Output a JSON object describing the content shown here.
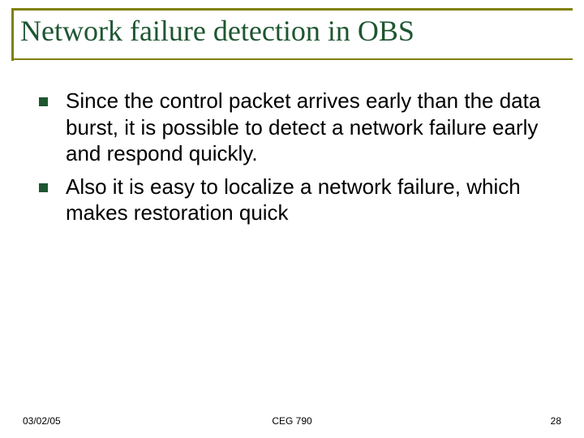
{
  "colors": {
    "title_text": "#1e5631",
    "title_border": "#808000",
    "title_underline": "#808000",
    "bullet_marker": "#1e5631",
    "body_text": "#000000",
    "footer_text": "#000000",
    "background": "#ffffff"
  },
  "typography": {
    "title_family": "Times New Roman",
    "title_size_pt": 36,
    "body_family": "Arial",
    "body_size_pt": 26,
    "footer_size_pt": 12
  },
  "title": "Network failure detection in OBS",
  "bullets": [
    "Since the control packet arrives early than the data burst, it is possible to detect a network failure early and respond quickly.",
    "Also it is easy to localize a network failure, which makes restoration quick"
  ],
  "footer": {
    "date": "03/02/05",
    "course": "CEG 790",
    "page": "28"
  }
}
